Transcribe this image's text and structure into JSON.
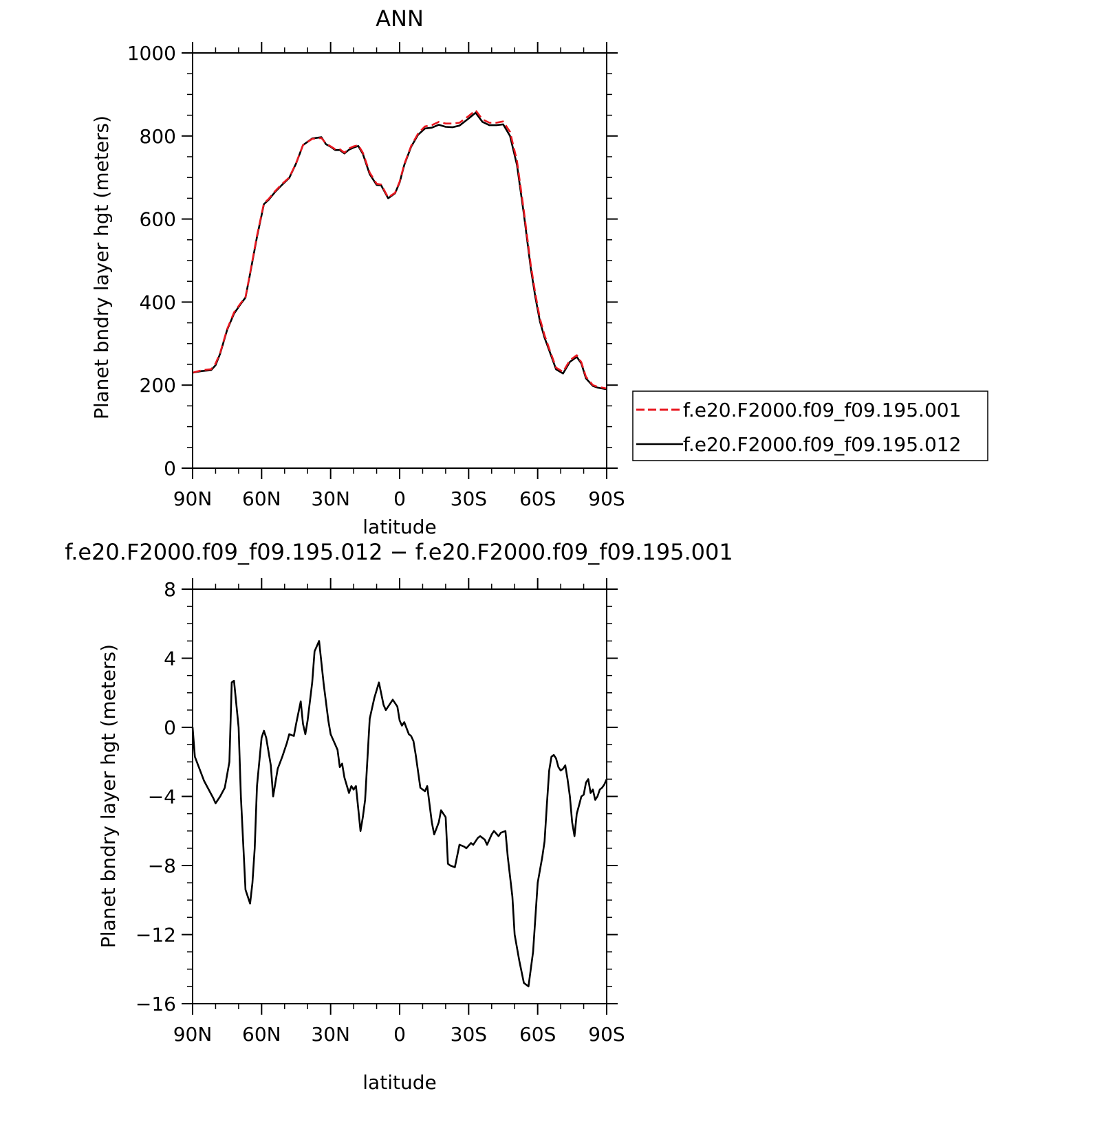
{
  "top": {
    "title": "ANN",
    "xlabel": "latitude",
    "ylabel": "Planet bndry layer hgt (meters)",
    "yticks": [
      "0",
      "200",
      "400",
      "600",
      "800",
      "1000"
    ],
    "xticks": [
      "90N",
      "60N",
      "30N",
      "0",
      "30S",
      "60S",
      "90S"
    ]
  },
  "bottom": {
    "title": "f.e20.F2000.f09_f09.195.012 − f.e20.F2000.f09_f09.195.001",
    "xlabel": "latitude",
    "ylabel": "Planet bndry layer hgt (meters)",
    "yticks": [
      "−16",
      "−12",
      "−8",
      "−4",
      "0",
      "4",
      "8"
    ],
    "xticks": [
      "90N",
      "60N",
      "30N",
      "0",
      "30S",
      "60S",
      "90S"
    ]
  },
  "legend": {
    "entries": [
      "f.e20.F2000.f09_f09.195.001",
      "f.e20.F2000.f09_f09.195.012"
    ]
  },
  "colors": {
    "series_001": "#e8171f",
    "series_012": "#000000"
  },
  "chart_data": [
    {
      "type": "line",
      "title": "ANN",
      "xlabel": "latitude",
      "ylabel": "Planet bndry layer hgt (meters)",
      "xlim": [
        90,
        -90
      ],
      "ylim": [
        0,
        1000
      ],
      "xticks": [
        90,
        60,
        30,
        0,
        -30,
        -60,
        -90
      ],
      "yticks": [
        0,
        200,
        400,
        600,
        800,
        1000
      ],
      "x": [
        90,
        86,
        82,
        80,
        78,
        75,
        72,
        69,
        67,
        65,
        62,
        59,
        57,
        54,
        51,
        48,
        45,
        42,
        38,
        34,
        32,
        30,
        28,
        26,
        24,
        22,
        20,
        18,
        16,
        13,
        10,
        8,
        5,
        2,
        0,
        -2,
        -5,
        -8,
        -11,
        -14,
        -17,
        -20,
        -23,
        -26,
        -30,
        -33,
        -36,
        -39,
        -42,
        -45,
        -48,
        -51,
        -54,
        -57,
        -59,
        -61,
        -63,
        -65,
        -68,
        -71,
        -74,
        -77,
        -79,
        -81,
        -84,
        -86,
        -88,
        -90
      ],
      "series": [
        {
          "name": "f.e20.F2000.f09_f09.195.001",
          "style": "dashed",
          "values": [
            230,
            236,
            238,
            252,
            278,
            335,
            375,
            398,
            412,
            470,
            560,
            638,
            648,
            668,
            685,
            700,
            735,
            778,
            793,
            795,
            782,
            775,
            768,
            768,
            760,
            770,
            775,
            778,
            760,
            712,
            685,
            683,
            652,
            663,
            690,
            732,
            776,
            806,
            823,
            826,
            834,
            830,
            830,
            832,
            848,
            862,
            840,
            832,
            832,
            835,
            810,
            740,
            620,
            490,
            420,
            360,
            320,
            288,
            242,
            232,
            260,
            272,
            255,
            220,
            200,
            196,
            194,
            192
          ]
        },
        {
          "name": "f.e20.F2000.f09_f09.195.012",
          "style": "solid",
          "values": [
            230,
            234,
            236,
            248,
            276,
            333,
            372,
            396,
            411,
            468,
            557,
            636,
            646,
            666,
            683,
            699,
            734,
            778,
            794,
            797,
            780,
            774,
            766,
            766,
            758,
            767,
            772,
            776,
            757,
            708,
            682,
            681,
            650,
            662,
            688,
            730,
            774,
            803,
            818,
            820,
            827,
            822,
            821,
            825,
            842,
            856,
            834,
            826,
            826,
            828,
            800,
            730,
            612,
            482,
            412,
            353,
            314,
            284,
            238,
            228,
            256,
            268,
            252,
            216,
            198,
            194,
            192,
            190
          ]
        }
      ],
      "legend": "right"
    },
    {
      "type": "line",
      "title": "f.e20.F2000.f09_f09.195.012 − f.e20.F2000.f09_f09.195.001",
      "xlabel": "latitude",
      "ylabel": "Planet bndry layer hgt (meters)",
      "xlim": [
        90,
        -90
      ],
      "ylim": [
        -16,
        8
      ],
      "xticks": [
        90,
        60,
        30,
        0,
        -30,
        -60,
        -90
      ],
      "yticks": [
        -16,
        -12,
        -8,
        -4,
        0,
        4,
        8
      ],
      "x": [
        90,
        89,
        87,
        85,
        83,
        81,
        80,
        78,
        76,
        74,
        73,
        72,
        70,
        69,
        67,
        65,
        64,
        63,
        62,
        60,
        59,
        58,
        56,
        55,
        53,
        51,
        49,
        48,
        46,
        45,
        43,
        42,
        41,
        40,
        38,
        37,
        35,
        33,
        31,
        30,
        28,
        27,
        26,
        25,
        24,
        22,
        21,
        20,
        19,
        17,
        16,
        15,
        13,
        11,
        9,
        7,
        6,
        5,
        3,
        1,
        0,
        -1,
        -2,
        -4,
        -5,
        -6,
        -7,
        -9,
        -11,
        -12,
        -14,
        -15,
        -17,
        -18,
        -20,
        -21,
        -22,
        -24,
        -26,
        -28,
        -29,
        -31,
        -32,
        -34,
        -35,
        -37,
        -38,
        -40,
        -41,
        -43,
        -44,
        -46,
        -47,
        -49,
        -50,
        -52,
        -54,
        -56,
        -58,
        -60,
        -62,
        -63,
        -64,
        -65,
        -66,
        -67,
        -68,
        -69,
        -70,
        -71,
        -72,
        -73,
        -74,
        -75,
        -76,
        -77,
        -78,
        -79,
        -80,
        -81,
        -82,
        -83,
        -84,
        -85,
        -86,
        -87,
        -88,
        -89,
        -90
      ],
      "series": [
        {
          "name": "f.e20.F2000.f09_f09.195.012 − f.e20.F2000.f09_f09.195.001",
          "values": [
            0,
            -1.7,
            -2.4,
            -3.1,
            -3.6,
            -4.1,
            -4.4,
            -4.0,
            -3.5,
            -2.0,
            2.6,
            2.7,
            0,
            -4.0,
            -9.4,
            -10.2,
            -9.0,
            -7.0,
            -3.4,
            -0.6,
            -0.2,
            -0.6,
            -2.2,
            -4.0,
            -2.4,
            -1.7,
            -0.9,
            -0.4,
            -0.5,
            0.2,
            1.5,
            0.2,
            -0.4,
            0.4,
            2.6,
            4.4,
            5.0,
            2.5,
            0.4,
            -0.4,
            -1.0,
            -1.3,
            -2.3,
            -2.1,
            -2.9,
            -3.8,
            -3.4,
            -3.6,
            -3.4,
            -6.0,
            -5.2,
            -4.2,
            0.5,
            1.7,
            2.6,
            1.3,
            1.0,
            1.2,
            1.6,
            1.2,
            0.4,
            0.1,
            0.3,
            -0.4,
            -0.5,
            -0.8,
            -1.6,
            -3.5,
            -3.7,
            -3.4,
            -5.5,
            -6.2,
            -5.5,
            -4.8,
            -5.2,
            -7.9,
            -8.0,
            -8.1,
            -6.8,
            -6.9,
            -7.0,
            -6.7,
            -6.8,
            -6.4,
            -6.3,
            -6.5,
            -6.8,
            -6.2,
            -6.0,
            -6.3,
            -6.1,
            -6.0,
            -7.5,
            -9.8,
            -12.0,
            -13.5,
            -14.8,
            -15.0,
            -13.0,
            -9.0,
            -7.5,
            -6.6,
            -4.5,
            -2.5,
            -1.7,
            -1.6,
            -1.8,
            -2.3,
            -2.5,
            -2.4,
            -2.2,
            -3.0,
            -4.0,
            -5.5,
            -6.3,
            -5.0,
            -4.5,
            -4.0,
            -3.9,
            -3.2,
            -3.0,
            -3.8,
            -3.6,
            -4.2,
            -4.0,
            -3.6,
            -3.5,
            -3.3,
            -3.0
          ]
        }
      ]
    }
  ]
}
